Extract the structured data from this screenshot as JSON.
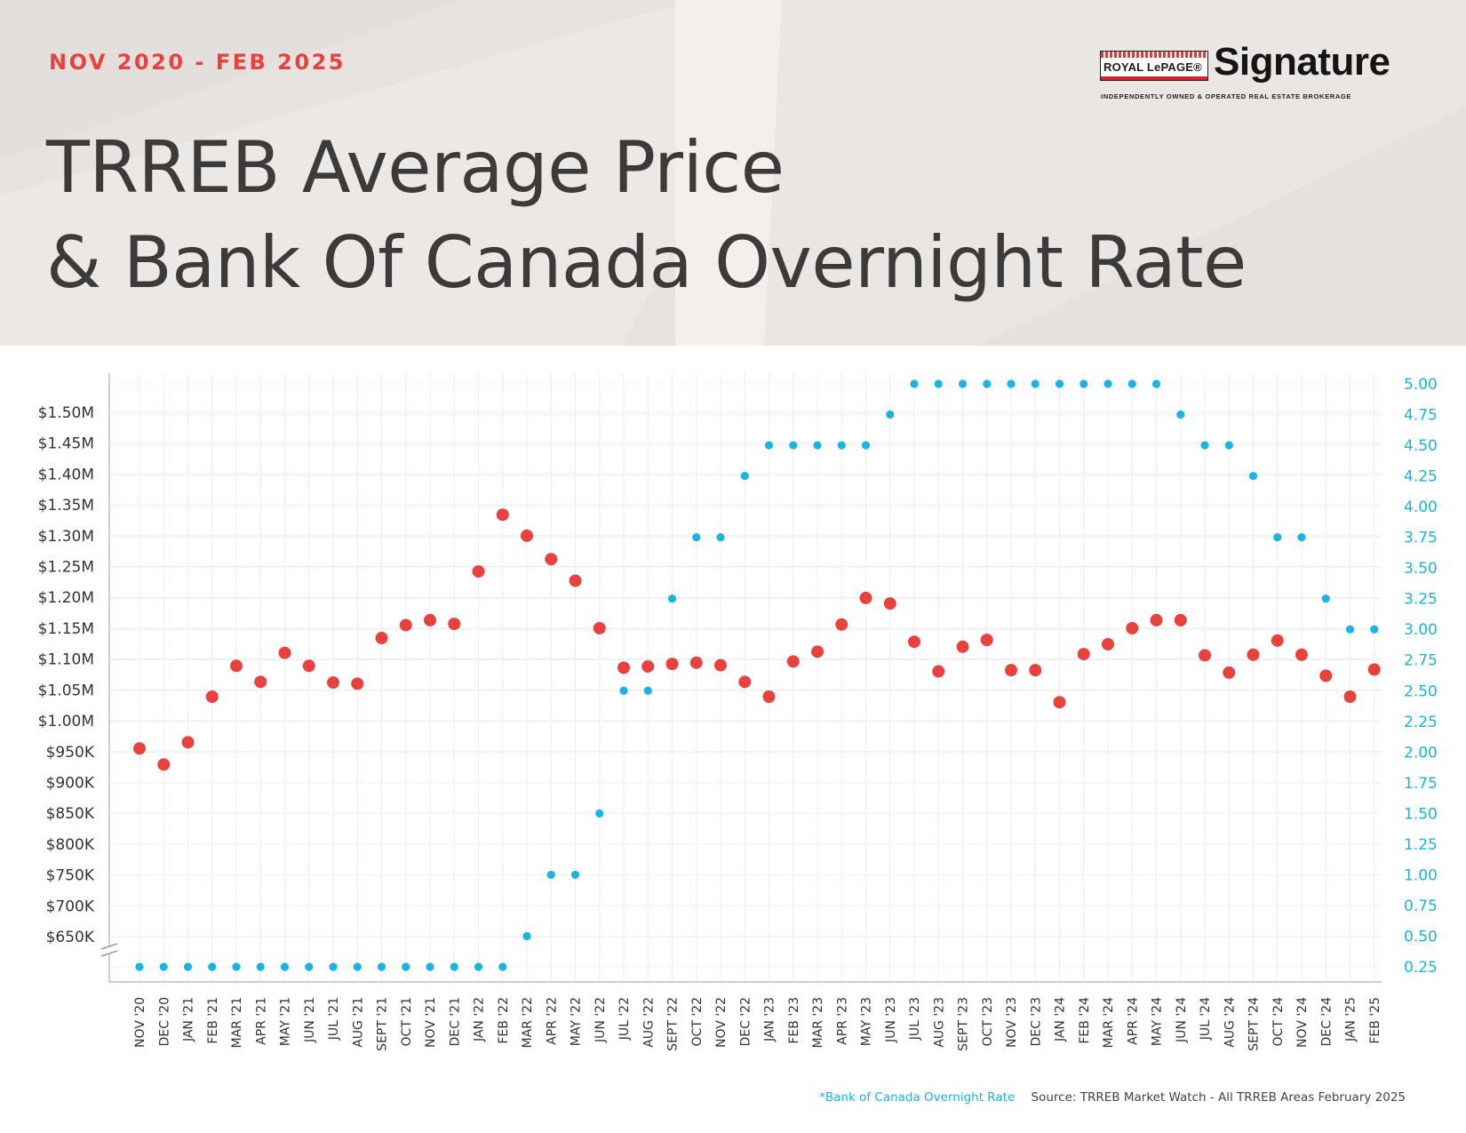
{
  "header": {
    "date_range": "NOV 2020 - FEB 2025",
    "title_line1": "TRREB Average Price",
    "title_line2": "& Bank Of Canada Overnight Rate"
  },
  "logo": {
    "badge": "ROYAL LePAGE®",
    "wordmark": "Signature",
    "tagline": "INDEPENDENTLY OWNED & OPERATED REAL ESTATE BROKERAGE"
  },
  "footer": {
    "rate_note": "*Bank of Canada Overnight Rate",
    "source": "Source: TRREB Market Watch - All TRREB Areas February 2025"
  },
  "colors": {
    "price": "#e8423f",
    "rate": "#18b4e6",
    "grid": "#ececec",
    "axis": "#bdbdbd",
    "left_tick_text": "#333333"
  },
  "chart_data": {
    "type": "scatter",
    "categories": [
      "NOV '20",
      "DEC '20",
      "JAN '21",
      "FEB '21",
      "MAR '21",
      "APR '21",
      "MAY '21",
      "JUN '21",
      "JUL '21",
      "AUG '21",
      "SEPT '21",
      "OCT '21",
      "NOV '21",
      "DEC '21",
      "JAN '22",
      "FEB '22",
      "MAR '22",
      "APR '22",
      "MAY '22",
      "JUN '22",
      "JUL '22",
      "AUG '22",
      "SEPT '22",
      "OCT '22",
      "NOV '22",
      "DEC '22",
      "JAN '23",
      "FEB '23",
      "MAR '23",
      "APR '23",
      "MAY '23",
      "JUN '23",
      "JUL '23",
      "AUG '23",
      "SEPT '23",
      "OCT '23",
      "NOV '23",
      "DEC '23",
      "JAN '24",
      "FEB '24",
      "MAR '24",
      "APR '24",
      "MAY '24",
      "JUN '24",
      "JUL '24",
      "AUG '24",
      "SEPT '24",
      "OCT '24",
      "NOV '24",
      "DEC '24",
      "JAN '25",
      "FEB '25"
    ],
    "series": [
      {
        "axis": "left",
        "values": [
          955000,
          929000,
          965000,
          1039000,
          1089000,
          1063000,
          1110000,
          1089000,
          1062000,
          1060000,
          1134000,
          1155000,
          1163000,
          1157000,
          1242000,
          1334000,
          1300000,
          1262000,
          1227000,
          1150000,
          1086000,
          1088000,
          1092000,
          1094000,
          1090000,
          1063000,
          1039000,
          1096000,
          1112000,
          1156000,
          1199000,
          1190000,
          1128000,
          1080000,
          1120000,
          1131000,
          1082000,
          1082000,
          1030000,
          1108000,
          1124000,
          1150000,
          1163000,
          1163000,
          1106000,
          1078000,
          1107000,
          1130000,
          1107000,
          1073000,
          1039000,
          1083000
        ]
      },
      {
        "axis": "right",
        "values": [
          0.25,
          0.25,
          0.25,
          0.25,
          0.25,
          0.25,
          0.25,
          0.25,
          0.25,
          0.25,
          0.25,
          0.25,
          0.25,
          0.25,
          0.25,
          0.25,
          0.5,
          1.0,
          1.0,
          1.5,
          2.5,
          2.5,
          3.25,
          3.75,
          3.75,
          4.25,
          4.5,
          4.5,
          4.5,
          4.5,
          4.5,
          4.75,
          5.0,
          5.0,
          5.0,
          5.0,
          5.0,
          5.0,
          5.0,
          5.0,
          5.0,
          5.0,
          5.0,
          4.75,
          4.5,
          4.5,
          4.25,
          3.75,
          3.75,
          3.25,
          3.0,
          3.0
        ]
      }
    ],
    "left_axis": {
      "tick_labels": [
        "$650K",
        "$700K",
        "$750K",
        "$800K",
        "$850K",
        "$900K",
        "$950K",
        "$1.00M",
        "$1.05M",
        "$1.10M",
        "$1.15M",
        "$1.20M",
        "$1.25M",
        "$1.30M",
        "$1.35M",
        "$1.40M",
        "$1.45M",
        "$1.50M"
      ],
      "tick_values": [
        650000,
        700000,
        750000,
        800000,
        850000,
        900000,
        950000,
        1000000,
        1050000,
        1100000,
        1150000,
        1200000,
        1250000,
        1300000,
        1350000,
        1400000,
        1450000,
        1500000
      ],
      "axis_break": "below $650K"
    },
    "right_axis": {
      "tick_labels": [
        "0.25",
        "0.50",
        "0.75",
        "1.00",
        "1.25",
        "1.50",
        "1.75",
        "2.00",
        "2.25",
        "2.50",
        "2.75",
        "3.00",
        "3.25",
        "3.50",
        "3.75",
        "4.00",
        "4.25",
        "4.50",
        "4.75",
        "5.00"
      ],
      "ylim": [
        0.25,
        5.0
      ]
    },
    "grid": true
  }
}
